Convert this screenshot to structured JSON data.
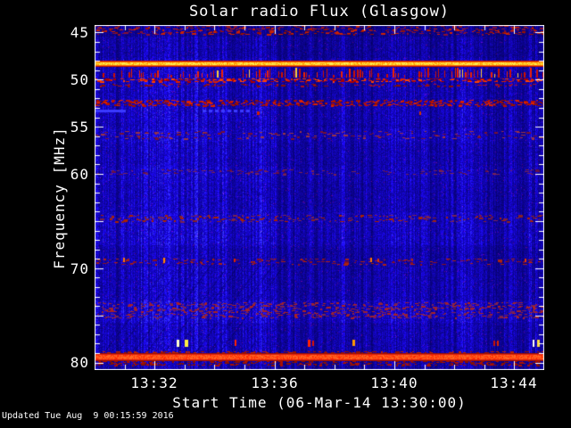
{
  "footer": {
    "updated": "Updated Tue Aug  9 00:15:59 2016"
  },
  "chart_data": {
    "type": "heatmap",
    "title": "Solar radio Flux (Glasgow)",
    "xlabel": "Start Time (06-Mar-14 13:30:00)",
    "ylabel": "Frequency [MHz]",
    "x_start_time": "13:30:00",
    "x_span_minutes": 15,
    "x_minor_tick_every_minutes": 1,
    "x_ticks": [
      {
        "minute": 2,
        "label": "13:32"
      },
      {
        "minute": 6,
        "label": "13:36"
      },
      {
        "minute": 10,
        "label": "13:40"
      },
      {
        "minute": 14,
        "label": "13:44"
      }
    ],
    "y_range_mhz": [
      44.2,
      80.8
    ],
    "y_minor_tick_every_mhz": 1,
    "y_major_tick_every_mhz": 5,
    "y_ticks": [
      {
        "value": 45,
        "label": "45"
      },
      {
        "value": 50,
        "label": "50"
      },
      {
        "value": 55,
        "label": "55"
      },
      {
        "value": 60,
        "label": "60"
      },
      {
        "value": 70,
        "label": "70"
      },
      {
        "value": 80,
        "label": "80"
      }
    ],
    "colors": {
      "background": "#000000",
      "axis": "#ffffff",
      "base_blue": "#0000cc",
      "rfi_yellow": "#ffee55",
      "rfi_red": "#ff3300"
    },
    "zones": [
      {
        "f0": 44.2,
        "f1": 45.4,
        "delta": -0.3
      },
      {
        "f0": 45.4,
        "f1": 47.7,
        "delta": -0.12
      },
      {
        "f0": 52.9,
        "f1": 54.6,
        "delta": 0.05
      },
      {
        "f0": 55.2,
        "f1": 56.7,
        "delta": 0.1
      },
      {
        "f0": 59.2,
        "f1": 60.9,
        "delta": 0.06
      },
      {
        "f0": 64.1,
        "f1": 67.6,
        "delta": 0.12
      },
      {
        "f0": 67.8,
        "f1": 69.9,
        "delta": -0.06
      },
      {
        "f0": 73.4,
        "f1": 75.8,
        "delta": 0.15
      },
      {
        "f0": 79.9,
        "f1": 80.8,
        "delta": -0.12
      }
    ],
    "features": [
      {
        "kind": "speckle",
        "f0": 44.3,
        "f1": 45.2,
        "density": 0.3,
        "colors": [
          "#991100",
          "#cc2200",
          "#881133"
        ]
      },
      {
        "kind": "band",
        "f0": 47.95,
        "f1": 48.6,
        "edge_dark": "#bb1100",
        "edge_mid": "#ff6600",
        "core_low": "#ff9900",
        "core_mid": "#ffcc22",
        "core_high": "#ffee55",
        "note": "strong solid RFI band ~48.3 MHz"
      },
      {
        "kind": "spikes",
        "f0": 48.75,
        "f1": 49.75,
        "colors": [
          "#cc1100",
          "#ee2200"
        ],
        "accent": "#ffcc33",
        "accent_prob": 0.15
      },
      {
        "kind": "speckle",
        "f0": 49.85,
        "f1": 50.25,
        "density": 0.62,
        "colors": [
          "#aa0000",
          "#dd2200",
          "#ff4400"
        ]
      },
      {
        "kind": "speckle",
        "f0": 50.45,
        "f1": 50.75,
        "density": 0.25,
        "colors": [
          "#881100",
          "#aa1122"
        ]
      },
      {
        "kind": "speckle",
        "f0": 52.15,
        "f1": 52.85,
        "density": 0.55,
        "colors": [
          "#bb1100",
          "#dd2200",
          "#991100"
        ]
      },
      {
        "kind": "segments",
        "f": 53.25,
        "color": "#3a3aff",
        "segments": [
          {
            "t0": 0.0,
            "t1": 1.05,
            "dashed": false
          },
          {
            "t0": 3.6,
            "t1": 5.1,
            "dashed": true
          }
        ]
      },
      {
        "kind": "dashes",
        "f": 53.6,
        "items": [
          {
            "t": 5.43,
            "color": "#cc2200",
            "w": 3,
            "h": 4
          },
          {
            "t": 10.83,
            "color": "#cc3300",
            "w": 2,
            "h": 4
          }
        ]
      },
      {
        "kind": "speckle",
        "f0": 55.5,
        "f1": 56.3,
        "density": 0.16,
        "colors": [
          "#771133",
          "#993344"
        ]
      },
      {
        "kind": "speckle",
        "f0": 59.5,
        "f1": 60.1,
        "density": 0.12,
        "colors": [
          "#661144",
          "#772255"
        ]
      },
      {
        "kind": "speckle",
        "f0": 64.35,
        "f1": 65.1,
        "density": 0.2,
        "colors": [
          "#882222",
          "#aa2200",
          "#772255"
        ]
      },
      {
        "kind": "speckle",
        "f0": 68.95,
        "f1": 69.6,
        "density": 0.2,
        "colors": [
          "#881122",
          "#aa2211"
        ]
      },
      {
        "kind": "dashes",
        "f": 69.2,
        "items": [
          {
            "t": 0.95,
            "color": "#ff7700",
            "w": 2,
            "h": 5
          },
          {
            "t": 2.29,
            "color": "#ff8800",
            "w": 2,
            "h": 6
          },
          {
            "t": 4.64,
            "color": "#dd2200",
            "w": 2,
            "h": 4
          },
          {
            "t": 9.2,
            "color": "#ff7700",
            "w": 2,
            "h": 5
          },
          {
            "t": 9.43,
            "color": "#dd3300",
            "w": 2,
            "h": 4
          },
          {
            "t": 14.34,
            "color": "#ee3300",
            "w": 2,
            "h": 4
          }
        ]
      },
      {
        "kind": "speckle",
        "f0": 73.6,
        "f1": 75.3,
        "density": 0.28,
        "colors": [
          "#992233",
          "#aa2222",
          "#772255"
        ]
      },
      {
        "kind": "dashes",
        "f": 78.0,
        "items": [
          {
            "t": 2.74,
            "color": "#ffffcc",
            "w": 3,
            "h": 8
          },
          {
            "t": 3.0,
            "color": "#ffee44",
            "w": 4,
            "h": 8
          },
          {
            "t": 4.67,
            "color": "#ff2200",
            "w": 2,
            "h": 7
          },
          {
            "t": 7.11,
            "color": "#ff2200",
            "w": 3,
            "h": 8
          },
          {
            "t": 7.25,
            "color": "#dd1100",
            "w": 2,
            "h": 6
          },
          {
            "t": 8.6,
            "color": "#ff9900",
            "w": 3,
            "h": 7
          },
          {
            "t": 13.3,
            "color": "#cc1100",
            "w": 2,
            "h": 6
          },
          {
            "t": 13.42,
            "color": "#dd2200",
            "w": 2,
            "h": 6
          },
          {
            "t": 14.6,
            "color": "#ffffff",
            "w": 2,
            "h": 8
          },
          {
            "t": 14.75,
            "color": "#ffdd44",
            "w": 3,
            "h": 8
          }
        ]
      },
      {
        "kind": "speckle",
        "f0": 78.85,
        "f1": 79.05,
        "density": 0.5,
        "colors": [
          "#991100",
          "#bb2200"
        ]
      },
      {
        "kind": "band",
        "f0": 79.05,
        "f1": 79.85,
        "edge_dark": "#991100",
        "edge_mid": "#dd2211",
        "core_low": "#ff2200",
        "core_mid": "#ff4411",
        "core_high": "#ff6622",
        "note": "strong solid RFI band ~79.5 MHz"
      },
      {
        "kind": "speckle",
        "f0": 79.9,
        "f1": 80.35,
        "density": 0.45,
        "colors": [
          "#881100",
          "#aa1100"
        ]
      }
    ]
  }
}
